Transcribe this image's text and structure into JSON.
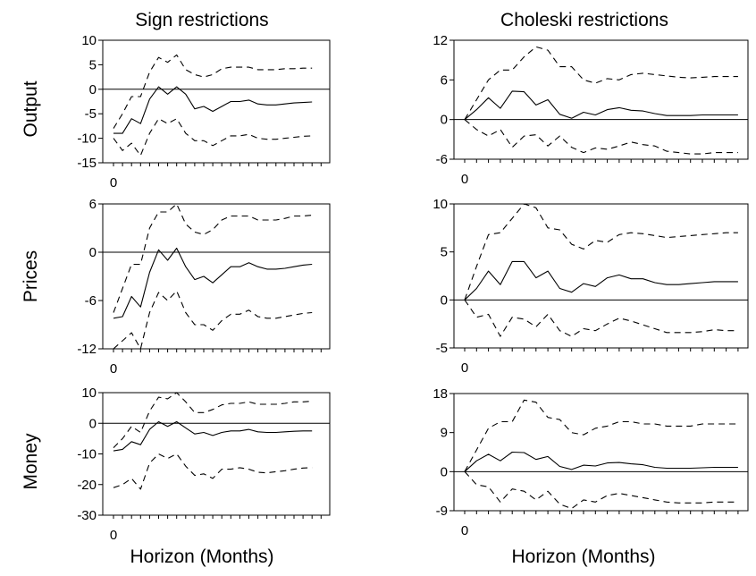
{
  "figure": {
    "col_titles": [
      "Sign restrictions",
      "Choleski restrictions"
    ],
    "row_labels": [
      "Output",
      "Prices",
      "Money"
    ],
    "xlabel": "Horizon (Months)"
  },
  "chart_data": [
    {
      "type": "line",
      "row": 0,
      "col": 0,
      "ylabel": "Output",
      "title": "Sign restrictions",
      "x_start": 0,
      "x_tick_label": "0",
      "xlim": [
        0,
        24
      ],
      "ylim": [
        -15,
        10
      ],
      "yticks": [
        10,
        5,
        0,
        -5,
        -10,
        -15
      ],
      "zero_line": true,
      "series": [
        {
          "style": "solid",
          "values": [
            -9,
            -9,
            -6,
            -7,
            -2,
            0.5,
            -1,
            0.5,
            -1,
            -4,
            -3.5,
            -4.5,
            -3.5,
            -2.5,
            -2.5,
            -2.2,
            -3,
            -3.2,
            -3.2,
            -3,
            -2.8,
            -2.7,
            -2.6
          ]
        },
        {
          "style": "dashed",
          "values": [
            -8,
            -5,
            -1.5,
            -1.5,
            3.5,
            6.5,
            5.5,
            7,
            4,
            3,
            2.5,
            3,
            4.2,
            4.5,
            4.5,
            4.5,
            4,
            4,
            4,
            4.2,
            4.2,
            4.3,
            4.3
          ]
        },
        {
          "style": "dashed",
          "values": [
            -10,
            -12.5,
            -11,
            -13.5,
            -9,
            -6,
            -7,
            -6,
            -9,
            -10.5,
            -10.5,
            -11.5,
            -10.5,
            -9.5,
            -9.5,
            -9.2,
            -10,
            -10.2,
            -10.2,
            -10,
            -9.8,
            -9.6,
            -9.5
          ]
        }
      ]
    },
    {
      "type": "line",
      "row": 0,
      "col": 1,
      "ylabel": "Output",
      "title": "Choleski restrictions",
      "x_start": 0,
      "x_tick_label": "0",
      "xlim": [
        0,
        24
      ],
      "ylim": [
        -6,
        12
      ],
      "yticks": [
        12,
        6,
        0,
        -6
      ],
      "zero_line": true,
      "series": [
        {
          "style": "solid",
          "values": [
            0,
            1.5,
            3.3,
            1.7,
            4.3,
            4.2,
            2.2,
            3,
            0.8,
            0.2,
            1.1,
            0.7,
            1.5,
            1.8,
            1.4,
            1.3,
            0.9,
            0.6,
            0.6,
            0.6,
            0.7,
            0.7,
            0.7,
            0.7
          ]
        },
        {
          "style": "dashed",
          "values": [
            0,
            3,
            6,
            7.5,
            7.5,
            9.5,
            11,
            10.5,
            8,
            8,
            6,
            5.5,
            6.2,
            6,
            6.8,
            7,
            6.8,
            6.6,
            6.4,
            6.3,
            6.4,
            6.5,
            6.5,
            6.5
          ]
        },
        {
          "style": "dashed",
          "values": [
            0,
            -1.5,
            -2.5,
            -1.5,
            -4.2,
            -2.5,
            -2.3,
            -4,
            -2.5,
            -4.2,
            -5,
            -4.3,
            -4.5,
            -4,
            -3.4,
            -3.8,
            -4,
            -4.8,
            -5,
            -5.2,
            -5.2,
            -5,
            -5,
            -5
          ]
        }
      ]
    },
    {
      "type": "line",
      "row": 1,
      "col": 0,
      "ylabel": "Prices",
      "title": "Sign restrictions",
      "x_start": 0,
      "x_tick_label": "0",
      "xlim": [
        0,
        24
      ],
      "ylim": [
        -12,
        6
      ],
      "yticks": [
        6,
        0,
        -6,
        -12
      ],
      "zero_line": true,
      "series": [
        {
          "style": "solid",
          "values": [
            -8.2,
            -8,
            -5.5,
            -6.8,
            -2.5,
            0.3,
            -1,
            0.5,
            -1.8,
            -3.4,
            -3,
            -3.8,
            -2.8,
            -1.8,
            -1.8,
            -1.3,
            -1.8,
            -2.1,
            -2.1,
            -2,
            -1.8,
            -1.6,
            -1.5
          ]
        },
        {
          "style": "dashed",
          "values": [
            -7.5,
            -4.5,
            -1.5,
            -1.5,
            3,
            5,
            5,
            6.5,
            3.5,
            2.5,
            2.2,
            2.8,
            4,
            4.5,
            4.5,
            4.5,
            4,
            4,
            4,
            4.2,
            4.5,
            4.5,
            4.6
          ]
        },
        {
          "style": "dashed",
          "values": [
            -12.5,
            -11,
            -10,
            -12,
            -7.5,
            -5,
            -6,
            -4.8,
            -7.5,
            -9,
            -9,
            -9.7,
            -8.5,
            -7.7,
            -7.7,
            -7.2,
            -8,
            -8.2,
            -8.2,
            -8,
            -7.8,
            -7.6,
            -7.5
          ]
        }
      ]
    },
    {
      "type": "line",
      "row": 1,
      "col": 1,
      "ylabel": "Prices",
      "title": "Choleski restrictions",
      "x_start": 0,
      "x_tick_label": "0",
      "xlim": [
        0,
        24
      ],
      "ylim": [
        -5,
        10
      ],
      "yticks": [
        10,
        5,
        0,
        -5
      ],
      "zero_line": true,
      "series": [
        {
          "style": "solid",
          "values": [
            0,
            1.2,
            3,
            1.6,
            4,
            4,
            2.3,
            3,
            1.2,
            0.8,
            1.7,
            1.4,
            2.3,
            2.6,
            2.2,
            2.2,
            1.8,
            1.6,
            1.6,
            1.7,
            1.8,
            1.9,
            1.9,
            1.9
          ]
        },
        {
          "style": "dashed",
          "values": [
            0,
            3.5,
            6.8,
            7,
            8.5,
            10,
            9.6,
            7.5,
            7.3,
            5.8,
            5.3,
            6.2,
            6,
            6.8,
            7,
            6.9,
            6.7,
            6.5,
            6.6,
            6.7,
            6.8,
            6.9,
            7,
            7
          ]
        },
        {
          "style": "dashed",
          "values": [
            0,
            -1.8,
            -1.5,
            -3.8,
            -1.8,
            -2,
            -2.8,
            -1.5,
            -3.2,
            -3.8,
            -3,
            -3.2,
            -2.5,
            -1.9,
            -2.2,
            -2.6,
            -3,
            -3.4,
            -3.4,
            -3.4,
            -3.3,
            -3.1,
            -3.2,
            -3.2
          ]
        }
      ]
    },
    {
      "type": "line",
      "row": 2,
      "col": 0,
      "ylabel": "Money",
      "title": "Sign restrictions",
      "x_start": 0,
      "x_tick_label": "0",
      "xlim": [
        0,
        24
      ],
      "ylim": [
        -30,
        10
      ],
      "yticks": [
        10,
        0,
        -10,
        -20,
        -30
      ],
      "zero_line": true,
      "series": [
        {
          "style": "solid",
          "values": [
            -9,
            -8.5,
            -6,
            -7,
            -2,
            0.5,
            -1,
            0.5,
            -1.5,
            -3.5,
            -3,
            -4,
            -3,
            -2.5,
            -2.5,
            -2,
            -2.8,
            -3,
            -3,
            -2.8,
            -2.6,
            -2.5,
            -2.5
          ]
        },
        {
          "style": "dashed",
          "values": [
            -8,
            -5,
            -1,
            -3,
            4,
            8.5,
            8,
            10.5,
            7,
            3.5,
            3.5,
            4.5,
            6,
            6.5,
            6.5,
            7,
            6.2,
            6.2,
            6.2,
            6.5,
            7,
            7,
            7.2
          ]
        },
        {
          "style": "dashed",
          "values": [
            -21,
            -20,
            -18,
            -21.5,
            -13,
            -10,
            -11.5,
            -10,
            -14,
            -17,
            -16.5,
            -18,
            -15,
            -15,
            -14.5,
            -15,
            -16,
            -16.2,
            -15.8,
            -15.5,
            -15,
            -14.6,
            -14.5
          ]
        }
      ]
    },
    {
      "type": "line",
      "row": 2,
      "col": 1,
      "ylabel": "Money",
      "title": "Choleski restrictions",
      "x_start": 0,
      "x_tick_label": "0",
      "xlim": [
        0,
        24
      ],
      "ylim": [
        -9,
        18
      ],
      "yticks": [
        18,
        9,
        0,
        -9
      ],
      "zero_line": true,
      "series": [
        {
          "style": "solid",
          "values": [
            0,
            2.5,
            4,
            2.5,
            4.5,
            4.4,
            2.8,
            3.5,
            1.2,
            0.5,
            1.5,
            1.3,
            2,
            2.1,
            1.8,
            1.6,
            1,
            0.8,
            0.8,
            0.8,
            0.9,
            1,
            1,
            1
          ]
        },
        {
          "style": "dashed",
          "values": [
            0,
            5,
            10,
            11.5,
            11.5,
            16.5,
            16,
            12.5,
            12,
            9,
            8.5,
            10,
            10.5,
            11.5,
            11.5,
            11,
            11,
            10.5,
            10.5,
            10.5,
            11,
            11,
            11,
            11
          ]
        },
        {
          "style": "dashed",
          "values": [
            0,
            -3,
            -3.5,
            -7,
            -4,
            -4.5,
            -6.5,
            -4.5,
            -7.5,
            -8.5,
            -6.5,
            -7,
            -5.5,
            -5,
            -5.5,
            -6,
            -6.5,
            -7,
            -7.2,
            -7.2,
            -7.2,
            -7,
            -7,
            -7
          ]
        }
      ]
    }
  ]
}
